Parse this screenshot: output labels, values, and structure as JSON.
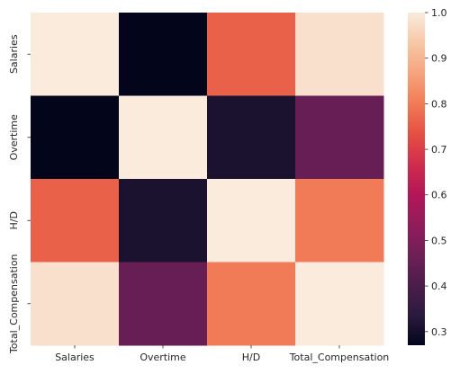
{
  "chart_data": {
    "type": "heatmap",
    "title": "",
    "xlabel": "",
    "ylabel": "",
    "x_categories": [
      "Salaries",
      "Overtime",
      "H/D",
      "Total_Compensation"
    ],
    "y_categories": [
      "Salaries",
      "Overtime",
      "H/D",
      "Total_Compensation"
    ],
    "values": [
      [
        1.0,
        0.27,
        0.76,
        0.98
      ],
      [
        0.27,
        1.0,
        0.31,
        0.45
      ],
      [
        0.76,
        0.31,
        1.0,
        0.8
      ],
      [
        0.98,
        0.45,
        0.8,
        1.0
      ]
    ],
    "colorbar": {
      "min": 0.27,
      "max": 1.0,
      "ticks": [
        "0.3",
        "0.4",
        "0.5",
        "0.6",
        "0.7",
        "0.8",
        "0.9",
        "1.0"
      ],
      "tick_values": [
        0.3,
        0.4,
        0.5,
        0.6,
        0.7,
        0.8,
        0.9,
        1.0
      ]
    },
    "colormap": "rocket",
    "colormap_stops": [
      "#03051a",
      "#2b1a3f",
      "#4c1d4b",
      "#701f57",
      "#921c5b",
      "#b41658",
      "#d12d4d",
      "#e65042",
      "#f17c56",
      "#f6a47c",
      "#f7c8a5",
      "#faebdd"
    ]
  }
}
